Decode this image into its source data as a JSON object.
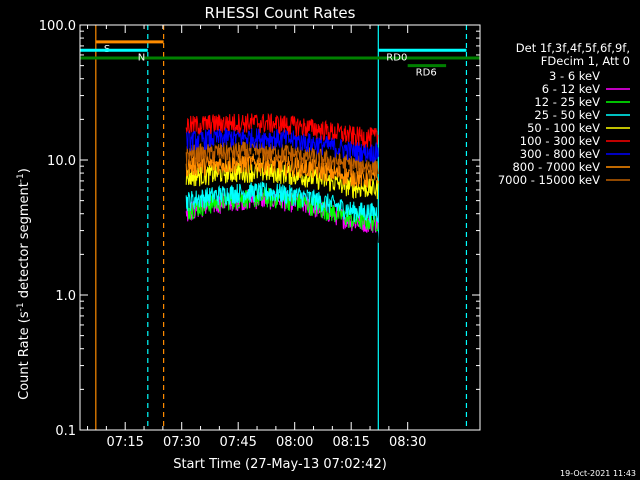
{
  "chart_data": {
    "type": "line",
    "title": "RHESSI Count Rates",
    "xlabel": "Start Time (27-May-13 07:02:42)",
    "ylabel_main": "Count Rate (s",
    "ylabel_sup1": "-1",
    "ylabel_mid": " detector segment",
    "ylabel_sup2": "-1",
    "ylabel_end": ")",
    "yscale": "log",
    "ylim": [
      0.1,
      100
    ],
    "xlim_minutes": [
      7.05,
      8.82
    ],
    "x_ticks": [
      "07:15",
      "07:30",
      "07:45",
      "08:00",
      "08:15",
      "08:30"
    ],
    "x_tick_values": [
      7.25,
      7.5,
      7.75,
      8.0,
      8.25,
      8.5
    ],
    "y_ticks": [
      "100.0",
      "10.0",
      "1.0",
      "0.1"
    ],
    "y_tick_values": [
      100,
      10,
      1,
      0.1
    ],
    "legend_header": [
      "Det 1f,3f,4f,5f,6f,9f,",
      "FDecim 1, Att 0"
    ],
    "series": [
      {
        "name": "3 - 6 keV",
        "color": "#000000",
        "profile_level": 3.3,
        "swing": 2.0
      },
      {
        "name": "6 - 12 keV",
        "color": "#ff00ff",
        "profile_level": 4.2,
        "swing": 1.8
      },
      {
        "name": "12 - 25 keV",
        "color": "#00ff00",
        "profile_level": 4.3,
        "swing": 1.8
      },
      {
        "name": "25 - 50 keV",
        "color": "#00ffff",
        "profile_level": 5.0,
        "swing": 1.6
      },
      {
        "name": "50 - 100 keV",
        "color": "#ffff00",
        "profile_level": 7.5,
        "swing": 1.4
      },
      {
        "name": "100 - 300 keV",
        "color": "#ff0000",
        "profile_level": 18.0,
        "swing": 1.3
      },
      {
        "name": "300 - 800 keV",
        "color": "#0000ff",
        "profile_level": 14.0,
        "swing": 1.3
      },
      {
        "name": "800 - 7000 keV",
        "color": "#ff8c00",
        "profile_level": 9.0,
        "swing": 1.3
      },
      {
        "name": "7000 - 15000 keV",
        "color": "#c06000",
        "profile_level": 11.0,
        "swing": 1.3
      }
    ],
    "data_interval_minutes": [
      7.52,
      8.37
    ],
    "markers": [
      {
        "label": "S",
        "color": "#ff8c00",
        "x": [
          7.12,
          7.42
        ],
        "level": 75
      },
      {
        "label": "N",
        "color": "#00ffff",
        "x": [
          7.05,
          7.35
        ],
        "level": 65
      },
      {
        "label": "RD0",
        "color": "#00ffff",
        "x": [
          8.37,
          8.76
        ],
        "level": 65
      },
      {
        "label": "RD6",
        "color": "#008000",
        "x": [
          8.5,
          8.67
        ],
        "level": 50
      }
    ],
    "night_bar": {
      "color": "#008000",
      "x": [
        7.05,
        8.82
      ],
      "level": 57
    },
    "vertical_lines": [
      {
        "x": 7.12,
        "color": "#ff8c00",
        "style": "solid"
      },
      {
        "x": 7.35,
        "color": "#00ffff",
        "style": "dashed"
      },
      {
        "x": 7.42,
        "color": "#ff8c00",
        "style": "dashed"
      },
      {
        "x": 8.37,
        "color": "#00ffff",
        "style": "solid"
      },
      {
        "x": 8.76,
        "color": "#00ffff",
        "style": "dashed"
      }
    ],
    "footer": "19-Oct-2021 11:43"
  }
}
